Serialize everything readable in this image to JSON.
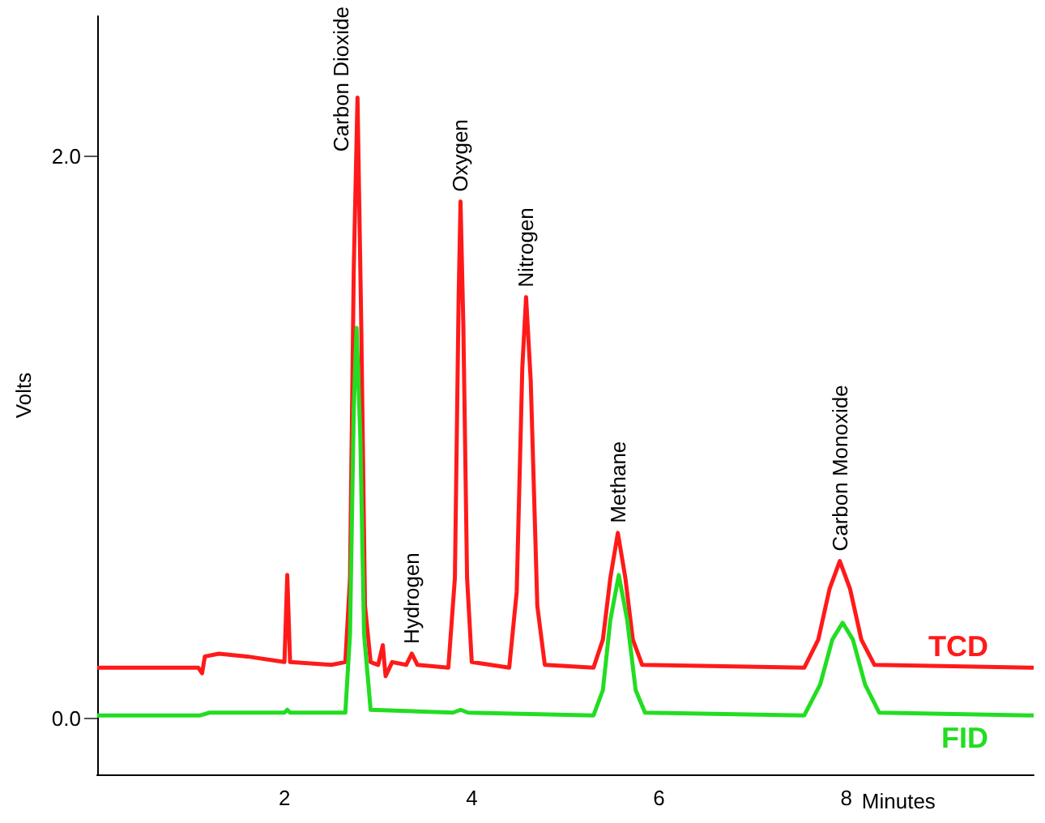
{
  "chart_data": {
    "type": "line",
    "xlabel": "Minutes",
    "ylabel": "Volts",
    "xlim": [
      0,
      10
    ],
    "xticks": [
      2,
      4,
      6,
      8
    ],
    "ylim": [
      -0.2,
      2.5
    ],
    "yticks": [
      {
        "value": 0,
        "label": "0.0"
      },
      {
        "value": 2,
        "label": "2.0"
      }
    ],
    "grid": false,
    "legend": false,
    "marker": "none",
    "line_style": "solid",
    "series": [
      {
        "name": "TCD",
        "color": "#ff1a1a",
        "x": [
          0,
          1.08,
          1.12,
          1.15,
          1.3,
          1.6,
          2.0,
          2.03,
          2.06,
          2.5,
          2.65,
          2.7,
          2.74,
          2.78,
          2.82,
          2.86,
          2.92,
          3.0,
          3.05,
          3.08,
          3.15,
          3.3,
          3.36,
          3.42,
          3.75,
          3.82,
          3.86,
          3.88,
          3.91,
          3.95,
          4.0,
          4.4,
          4.48,
          4.54,
          4.58,
          4.63,
          4.7,
          4.78,
          5.3,
          5.4,
          5.48,
          5.56,
          5.64,
          5.72,
          5.82,
          7.55,
          7.7,
          7.82,
          7.93,
          8.04,
          8.16,
          8.3,
          10.0
        ],
        "values": [
          0.18,
          0.18,
          0.16,
          0.22,
          0.23,
          0.22,
          0.2,
          0.51,
          0.2,
          0.19,
          0.2,
          0.5,
          1.6,
          2.21,
          1.4,
          0.4,
          0.2,
          0.19,
          0.26,
          0.15,
          0.2,
          0.19,
          0.23,
          0.19,
          0.18,
          0.5,
          1.5,
          1.84,
          1.4,
          0.5,
          0.2,
          0.18,
          0.45,
          1.25,
          1.5,
          1.2,
          0.4,
          0.19,
          0.18,
          0.28,
          0.5,
          0.66,
          0.5,
          0.28,
          0.19,
          0.18,
          0.28,
          0.46,
          0.56,
          0.46,
          0.28,
          0.19,
          0.18
        ]
      },
      {
        "name": "FID",
        "color": "#22dd22",
        "x": [
          0,
          1.1,
          1.2,
          2.0,
          2.03,
          2.06,
          2.65,
          2.7,
          2.74,
          2.77,
          2.81,
          2.85,
          2.92,
          3.8,
          3.88,
          3.96,
          5.3,
          5.4,
          5.48,
          5.57,
          5.66,
          5.75,
          5.85,
          7.55,
          7.72,
          7.85,
          7.96,
          8.07,
          8.2,
          8.35,
          10.0
        ],
        "values": [
          0.01,
          0.01,
          0.02,
          0.02,
          0.03,
          0.02,
          0.02,
          0.3,
          1.1,
          1.39,
          1.0,
          0.3,
          0.03,
          0.02,
          0.03,
          0.02,
          0.01,
          0.1,
          0.35,
          0.51,
          0.35,
          0.1,
          0.02,
          0.01,
          0.12,
          0.28,
          0.34,
          0.28,
          0.12,
          0.02,
          0.01
        ]
      }
    ],
    "annotations": [
      {
        "text": "Carbon Dioxide",
        "x": 2.78,
        "y": 2.21
      },
      {
        "text": "Hydrogen",
        "x": 3.36,
        "y": 0.23
      },
      {
        "text": "Oxygen",
        "x": 3.88,
        "y": 1.84
      },
      {
        "text": "Nitrogen",
        "x": 4.58,
        "y": 1.5
      },
      {
        "text": "Methane",
        "x": 5.56,
        "y": 0.66
      },
      {
        "text": "Carbon Monoxide",
        "x": 7.93,
        "y": 0.56
      }
    ]
  }
}
